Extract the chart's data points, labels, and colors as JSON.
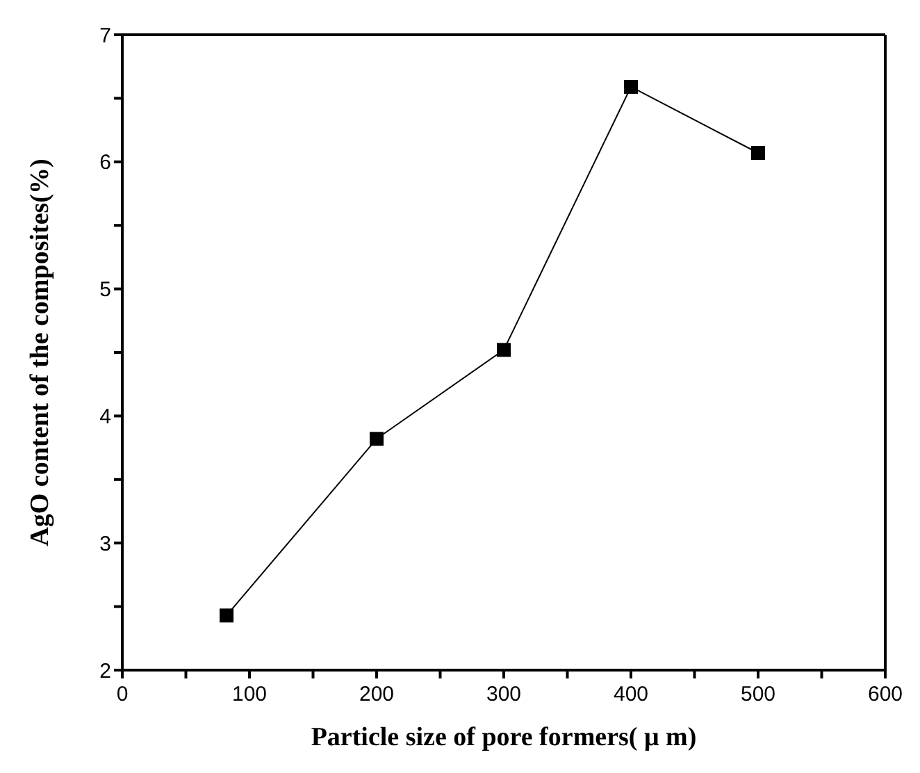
{
  "chart_data": {
    "type": "line",
    "xlabel": "Particle size of pore formers( μ m)",
    "ylabel": "AgO content of the composites(%)",
    "x": [
      82,
      200,
      300,
      400,
      500
    ],
    "series": [
      {
        "color": "#000000",
        "values": [
          2.43,
          3.82,
          4.52,
          6.59,
          6.07
        ]
      }
    ],
    "xlim": [
      0,
      600
    ],
    "ylim": [
      2,
      7
    ],
    "xticks": [
      0,
      {
        "value": 50,
        "label": null
      },
      100,
      {
        "value": 150,
        "label": null
      },
      200,
      {
        "value": 250,
        "label": null
      },
      300,
      {
        "value": 350,
        "label": null
      },
      400,
      {
        "value": 450,
        "label": null
      },
      500,
      {
        "value": 550,
        "label": null
      },
      600
    ],
    "yticks": [
      2,
      {
        "value": 2.5,
        "label": null
      },
      3,
      {
        "value": 3.5,
        "label": null
      },
      4,
      {
        "value": 4.5,
        "label": null
      },
      5,
      {
        "value": 5.5,
        "label": null
      },
      6,
      {
        "value": 6.5,
        "label": null
      },
      7
    ],
    "marker": "square",
    "line_style": "solid",
    "grid": false,
    "legend": false
  }
}
